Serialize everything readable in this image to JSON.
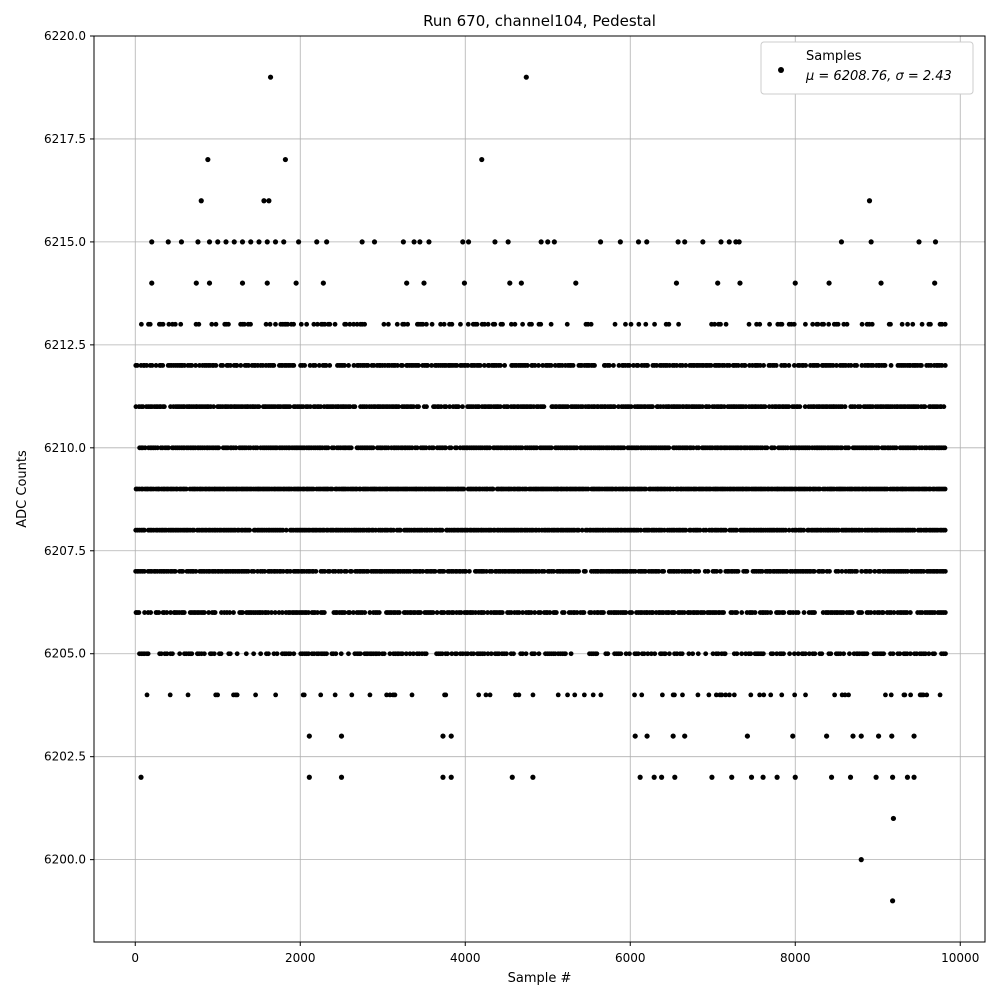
{
  "chart_data": {
    "type": "scatter",
    "title": "Run 670, channel104, Pedestal",
    "xlabel": "Sample #",
    "ylabel": "ADC Counts",
    "xlim": [
      -500,
      10300
    ],
    "ylim": [
      6198,
      6220
    ],
    "xticks": [
      0,
      2000,
      4000,
      6000,
      8000,
      10000
    ],
    "xtick_labels": [
      "0",
      "2000",
      "4000",
      "6000",
      "8000",
      "10000"
    ],
    "yticks": [
      6200.0,
      6202.5,
      6205.0,
      6207.5,
      6210.0,
      6212.5,
      6215.0,
      6217.5,
      6220.0
    ],
    "ytick_labels": [
      "6200.0",
      "6202.5",
      "6205.0",
      "6207.5",
      "6210.0",
      "6212.5",
      "6215.0",
      "6217.5",
      "6220.0"
    ],
    "grid": true,
    "legend": {
      "location": "upper right",
      "entries": [
        "Samples",
        "μ = 6208.76, σ = 2.43"
      ]
    },
    "colors": {
      "marker": "#000000",
      "grid": "#b0b0b0"
    },
    "series": [
      {
        "name": "Samples",
        "x_range": [
          0,
          9830
        ],
        "n_samples": 9831,
        "dense_levels": [
          6204,
          6205,
          6206,
          6207,
          6208,
          6209,
          6210,
          6211,
          6212,
          6213
        ],
        "points": [
          {
            "x": 1640,
            "y": 6219
          },
          {
            "x": 4740,
            "y": 6219
          },
          {
            "x": 880,
            "y": 6217
          },
          {
            "x": 1820,
            "y": 6217
          },
          {
            "x": 4200,
            "y": 6217
          },
          {
            "x": 800,
            "y": 6216
          },
          {
            "x": 1560,
            "y": 6216
          },
          {
            "x": 1620,
            "y": 6216
          },
          {
            "x": 8900,
            "y": 6216
          },
          {
            "x": 200,
            "y": 6215
          },
          {
            "x": 400,
            "y": 6215
          },
          {
            "x": 560,
            "y": 6215
          },
          {
            "x": 760,
            "y": 6215
          },
          {
            "x": 900,
            "y": 6215
          },
          {
            "x": 1000,
            "y": 6215
          },
          {
            "x": 1100,
            "y": 6215
          },
          {
            "x": 1200,
            "y": 6215
          },
          {
            "x": 1300,
            "y": 6215
          },
          {
            "x": 1400,
            "y": 6215
          },
          {
            "x": 1500,
            "y": 6215
          },
          {
            "x": 1600,
            "y": 6215
          },
          {
            "x": 1700,
            "y": 6215
          },
          {
            "x": 1800,
            "y": 6215
          },
          {
            "x": 1980,
            "y": 6215
          },
          {
            "x": 2200,
            "y": 6215
          },
          {
            "x": 2320,
            "y": 6215
          },
          {
            "x": 2750,
            "y": 6215
          },
          {
            "x": 2900,
            "y": 6215
          },
          {
            "x": 3250,
            "y": 6215
          },
          {
            "x": 3380,
            "y": 6215
          },
          {
            "x": 3450,
            "y": 6215
          },
          {
            "x": 3560,
            "y": 6215
          },
          {
            "x": 3970,
            "y": 6215
          },
          {
            "x": 4040,
            "y": 6215
          },
          {
            "x": 4360,
            "y": 6215
          },
          {
            "x": 4520,
            "y": 6215
          },
          {
            "x": 4920,
            "y": 6215
          },
          {
            "x": 5000,
            "y": 6215
          },
          {
            "x": 5080,
            "y": 6215
          },
          {
            "x": 5640,
            "y": 6215
          },
          {
            "x": 5880,
            "y": 6215
          },
          {
            "x": 6100,
            "y": 6215
          },
          {
            "x": 6200,
            "y": 6215
          },
          {
            "x": 6580,
            "y": 6215
          },
          {
            "x": 6660,
            "y": 6215
          },
          {
            "x": 6880,
            "y": 6215
          },
          {
            "x": 7100,
            "y": 6215
          },
          {
            "x": 7200,
            "y": 6215
          },
          {
            "x": 7280,
            "y": 6215
          },
          {
            "x": 7320,
            "y": 6215
          },
          {
            "x": 8560,
            "y": 6215
          },
          {
            "x": 8920,
            "y": 6215
          },
          {
            "x": 9500,
            "y": 6215
          },
          {
            "x": 9700,
            "y": 6215
          },
          {
            "x": 200,
            "y": 6214
          },
          {
            "x": 740,
            "y": 6214
          },
          {
            "x": 900,
            "y": 6214
          },
          {
            "x": 1300,
            "y": 6214
          },
          {
            "x": 1600,
            "y": 6214
          },
          {
            "x": 1950,
            "y": 6214
          },
          {
            "x": 2280,
            "y": 6214
          },
          {
            "x": 3290,
            "y": 6214
          },
          {
            "x": 3500,
            "y": 6214
          },
          {
            "x": 3990,
            "y": 6214
          },
          {
            "x": 4540,
            "y": 6214
          },
          {
            "x": 4680,
            "y": 6214
          },
          {
            "x": 5340,
            "y": 6214
          },
          {
            "x": 6560,
            "y": 6214
          },
          {
            "x": 7060,
            "y": 6214
          },
          {
            "x": 7330,
            "y": 6214
          },
          {
            "x": 8000,
            "y": 6214
          },
          {
            "x": 8410,
            "y": 6214
          },
          {
            "x": 9040,
            "y": 6214
          },
          {
            "x": 9690,
            "y": 6214
          },
          {
            "x": 6204,
            "y": 6203
          },
          {
            "x": 2110,
            "y": 6203
          },
          {
            "x": 2500,
            "y": 6203
          },
          {
            "x": 3730,
            "y": 6203
          },
          {
            "x": 3830,
            "y": 6203
          },
          {
            "x": 6060,
            "y": 6203
          },
          {
            "x": 6520,
            "y": 6203
          },
          {
            "x": 6660,
            "y": 6203
          },
          {
            "x": 7420,
            "y": 6203
          },
          {
            "x": 7970,
            "y": 6203
          },
          {
            "x": 8380,
            "y": 6203
          },
          {
            "x": 8700,
            "y": 6203
          },
          {
            "x": 8800,
            "y": 6203
          },
          {
            "x": 9010,
            "y": 6203
          },
          {
            "x": 9170,
            "y": 6203
          },
          {
            "x": 9440,
            "y": 6203
          },
          {
            "x": 70,
            "y": 6202
          },
          {
            "x": 2110,
            "y": 6202
          },
          {
            "x": 2500,
            "y": 6202
          },
          {
            "x": 3730,
            "y": 6202
          },
          {
            "x": 3830,
            "y": 6202
          },
          {
            "x": 4570,
            "y": 6202
          },
          {
            "x": 4820,
            "y": 6202
          },
          {
            "x": 6120,
            "y": 6202
          },
          {
            "x": 6290,
            "y": 6202
          },
          {
            "x": 6380,
            "y": 6202
          },
          {
            "x": 6540,
            "y": 6202
          },
          {
            "x": 6990,
            "y": 6202
          },
          {
            "x": 7230,
            "y": 6202
          },
          {
            "x": 7470,
            "y": 6202
          },
          {
            "x": 7610,
            "y": 6202
          },
          {
            "x": 7780,
            "y": 6202
          },
          {
            "x": 8000,
            "y": 6202
          },
          {
            "x": 8440,
            "y": 6202
          },
          {
            "x": 8670,
            "y": 6202
          },
          {
            "x": 8980,
            "y": 6202
          },
          {
            "x": 9180,
            "y": 6202
          },
          {
            "x": 9360,
            "y": 6202
          },
          {
            "x": 9440,
            "y": 6202
          },
          {
            "x": 9190,
            "y": 6201
          },
          {
            "x": 8800,
            "y": 6200
          },
          {
            "x": 9180,
            "y": 6199
          }
        ]
      }
    ]
  }
}
